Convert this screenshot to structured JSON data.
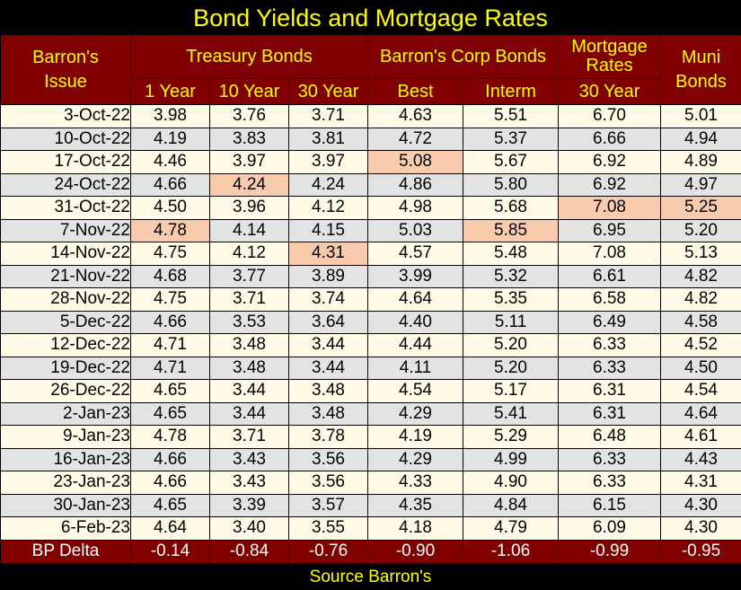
{
  "title": "Bond Yields and Mortgage Rates",
  "source": "Source Barron's",
  "colors": {
    "background": "#000000",
    "header_bg": "#800000",
    "header_text": "#ffff00",
    "row_light": "#fffbe6",
    "row_gray": "#e3e3e3",
    "highlight": "#f8cbad"
  },
  "headers": {
    "issue": "Barron's Issue",
    "treasury": "Treasury Bonds",
    "corp": "Barron's Corp Bonds",
    "mortgage": "Mortgage Rates",
    "muni": "Muni Bonds",
    "one_year": "1 Year",
    "ten_year": "10 Year",
    "thirty_year": "30 Year",
    "best": "Best",
    "interm": "Interm",
    "mortgage_30": "30 Year"
  },
  "highlighted_cells_note": "",
  "rows": [
    {
      "date": "3-Oct-22",
      "values": [
        "3.98",
        "3.76",
        "3.71",
        "4.63",
        "5.51",
        "6.70",
        "5.01"
      ],
      "hl": []
    },
    {
      "date": "10-Oct-22",
      "values": [
        "4.19",
        "3.83",
        "3.81",
        "4.72",
        "5.37",
        "6.66",
        "4.94"
      ],
      "hl": []
    },
    {
      "date": "17-Oct-22",
      "values": [
        "4.46",
        "3.97",
        "3.97",
        "5.08",
        "5.67",
        "6.92",
        "4.89"
      ],
      "hl": [
        3
      ]
    },
    {
      "date": "24-Oct-22",
      "values": [
        "4.66",
        "4.24",
        "4.24",
        "4.86",
        "5.80",
        "6.92",
        "4.97"
      ],
      "hl": [
        1
      ]
    },
    {
      "date": "31-Oct-22",
      "values": [
        "4.50",
        "3.96",
        "4.12",
        "4.98",
        "5.68",
        "7.08",
        "5.25"
      ],
      "hl": [
        5,
        6
      ]
    },
    {
      "date": "7-Nov-22",
      "values": [
        "4.78",
        "4.14",
        "4.15",
        "5.03",
        "5.85",
        "6.95",
        "5.20"
      ],
      "hl": [
        0,
        4
      ]
    },
    {
      "date": "14-Nov-22",
      "values": [
        "4.75",
        "4.12",
        "4.31",
        "4.57",
        "5.48",
        "7.08",
        "5.13"
      ],
      "hl": [
        2
      ]
    },
    {
      "date": "21-Nov-22",
      "values": [
        "4.68",
        "3.77",
        "3.89",
        "3.99",
        "5.32",
        "6.61",
        "4.82"
      ],
      "hl": []
    },
    {
      "date": "28-Nov-22",
      "values": [
        "4.75",
        "3.71",
        "3.74",
        "4.64",
        "5.35",
        "6.58",
        "4.82"
      ],
      "hl": []
    },
    {
      "date": "5-Dec-22",
      "values": [
        "4.66",
        "3.53",
        "3.64",
        "4.40",
        "5.11",
        "6.49",
        "4.58"
      ],
      "hl": []
    },
    {
      "date": "12-Dec-22",
      "values": [
        "4.71",
        "3.48",
        "3.44",
        "4.44",
        "5.20",
        "6.33",
        "4.52"
      ],
      "hl": []
    },
    {
      "date": "19-Dec-22",
      "values": [
        "4.71",
        "3.48",
        "3.44",
        "4.11",
        "5.20",
        "6.33",
        "4.50"
      ],
      "hl": []
    },
    {
      "date": "26-Dec-22",
      "values": [
        "4.65",
        "3.44",
        "3.48",
        "4.54",
        "5.17",
        "6.31",
        "4.54"
      ],
      "hl": []
    },
    {
      "date": "2-Jan-23",
      "values": [
        "4.65",
        "3.44",
        "3.48",
        "4.29",
        "5.41",
        "6.31",
        "4.64"
      ],
      "hl": []
    },
    {
      "date": "9-Jan-23",
      "values": [
        "4.78",
        "3.71",
        "3.78",
        "4.19",
        "5.29",
        "6.48",
        "4.61"
      ],
      "hl": []
    },
    {
      "date": "16-Jan-23",
      "values": [
        "4.66",
        "3.43",
        "3.56",
        "4.29",
        "4.99",
        "6.33",
        "4.43"
      ],
      "hl": []
    },
    {
      "date": "23-Jan-23",
      "values": [
        "4.66",
        "3.43",
        "3.56",
        "4.33",
        "4.90",
        "6.33",
        "4.31"
      ],
      "hl": []
    },
    {
      "date": "30-Jan-23",
      "values": [
        "4.65",
        "3.39",
        "3.57",
        "4.35",
        "4.84",
        "6.15",
        "4.30"
      ],
      "hl": []
    },
    {
      "date": "6-Feb-23",
      "values": [
        "4.64",
        "3.40",
        "3.55",
        "4.18",
        "4.79",
        "6.09",
        "4.30"
      ],
      "hl": []
    }
  ],
  "delta": {
    "label": "BP Delta",
    "values": [
      "-0.14",
      "-0.84",
      "-0.76",
      "-0.90",
      "-1.06",
      "-0.99",
      "-0.95"
    ]
  }
}
